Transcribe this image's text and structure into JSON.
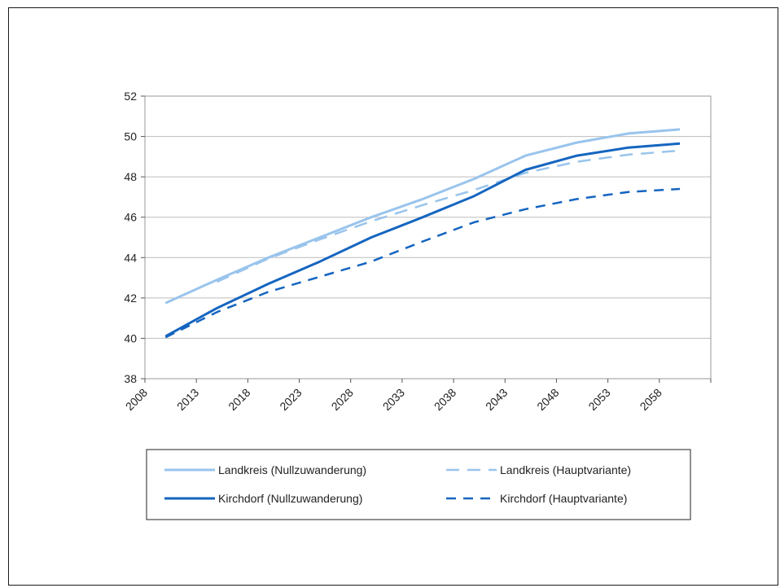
{
  "chart_data": {
    "type": "line",
    "x": [
      2010,
      2015,
      2020,
      2025,
      2030,
      2035,
      2040,
      2045,
      2050,
      2055,
      2060
    ],
    "x_ticks": [
      "2008",
      "2013",
      "2018",
      "2023",
      "2028",
      "2033",
      "2038",
      "2043",
      "2048",
      "2053",
      "2058"
    ],
    "xlim": [
      2008,
      2063
    ],
    "ylim": [
      38,
      52
    ],
    "y_ticks": [
      "38",
      "40",
      "42",
      "44",
      "46",
      "48",
      "50",
      "52"
    ],
    "grid": true,
    "legend_position": "bottom",
    "series": [
      {
        "name": "Landkreis (Nullzuwanderung)",
        "color": "#99c4ec",
        "style": "solid",
        "values": [
          41.75,
          42.9,
          44.0,
          45.0,
          46.0,
          46.9,
          47.9,
          49.05,
          49.7,
          50.15,
          50.35
        ]
      },
      {
        "name": "Landkreis (Hauptvariante)",
        "color": "#99c4ec",
        "style": "dashed",
        "values": [
          null,
          42.8,
          43.95,
          44.9,
          45.8,
          46.6,
          47.35,
          48.2,
          48.75,
          49.1,
          49.3
        ]
      },
      {
        "name": "Kirchdorf (Nullzuwanderung)",
        "color": "#1565c0",
        "style": "solid",
        "values": [
          40.1,
          41.5,
          42.7,
          43.8,
          45.0,
          46.0,
          47.05,
          48.35,
          49.05,
          49.45,
          49.65
        ]
      },
      {
        "name": "Kirchdorf (Hauptvariante)",
        "color": "#1565c0",
        "style": "dashed",
        "values": [
          40.05,
          41.3,
          42.3,
          43.05,
          43.8,
          44.8,
          45.75,
          46.4,
          46.9,
          47.25,
          47.4
        ]
      }
    ]
  }
}
